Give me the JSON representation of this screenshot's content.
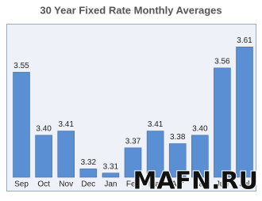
{
  "chart_data": {
    "type": "bar",
    "title": "30 Year Fixed Rate Monthly Averages",
    "categories": [
      "Sep",
      "Oct",
      "Nov",
      "Dec",
      "Jan",
      "Feb",
      "Mar",
      "Apr",
      "May",
      "Jun",
      "Jul"
    ],
    "values": [
      3.55,
      3.4,
      3.41,
      3.32,
      3.31,
      3.37,
      3.41,
      3.38,
      3.4,
      3.56,
      3.61
    ],
    "value_labels": [
      "3.55",
      "3.40",
      "3.41",
      "3.32",
      "3.31",
      "3.37",
      "3.41",
      "3.38",
      "3.40",
      "3.56",
      "3.61"
    ],
    "color": "#5b8fd4",
    "ylim": [
      3.3,
      3.62
    ],
    "watermark": "MAFN.RU"
  }
}
